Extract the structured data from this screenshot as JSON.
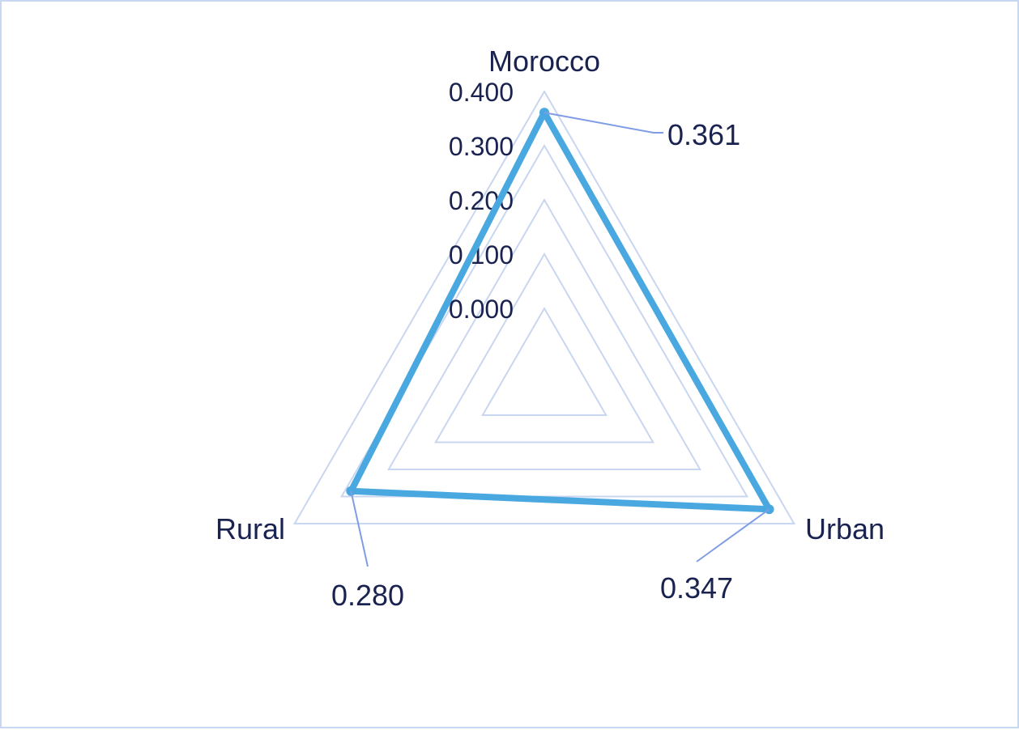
{
  "chart_data": {
    "type": "radar",
    "axes": [
      "Morocco",
      "Urban",
      "Rural"
    ],
    "series": [
      {
        "values": [
          0.361,
          0.347,
          0.28
        ]
      }
    ],
    "rlim": [
      0.0,
      0.4
    ],
    "ticks": [
      "0.000",
      "0.100",
      "0.200",
      "0.300",
      "0.400"
    ],
    "data_labels": [
      "0.361",
      "0.347",
      "0.280"
    ],
    "colors": {
      "series": "#4aa8e0",
      "grid": "#c8d6f0",
      "leader": "#7f9de6",
      "text": "#1a2350"
    }
  }
}
